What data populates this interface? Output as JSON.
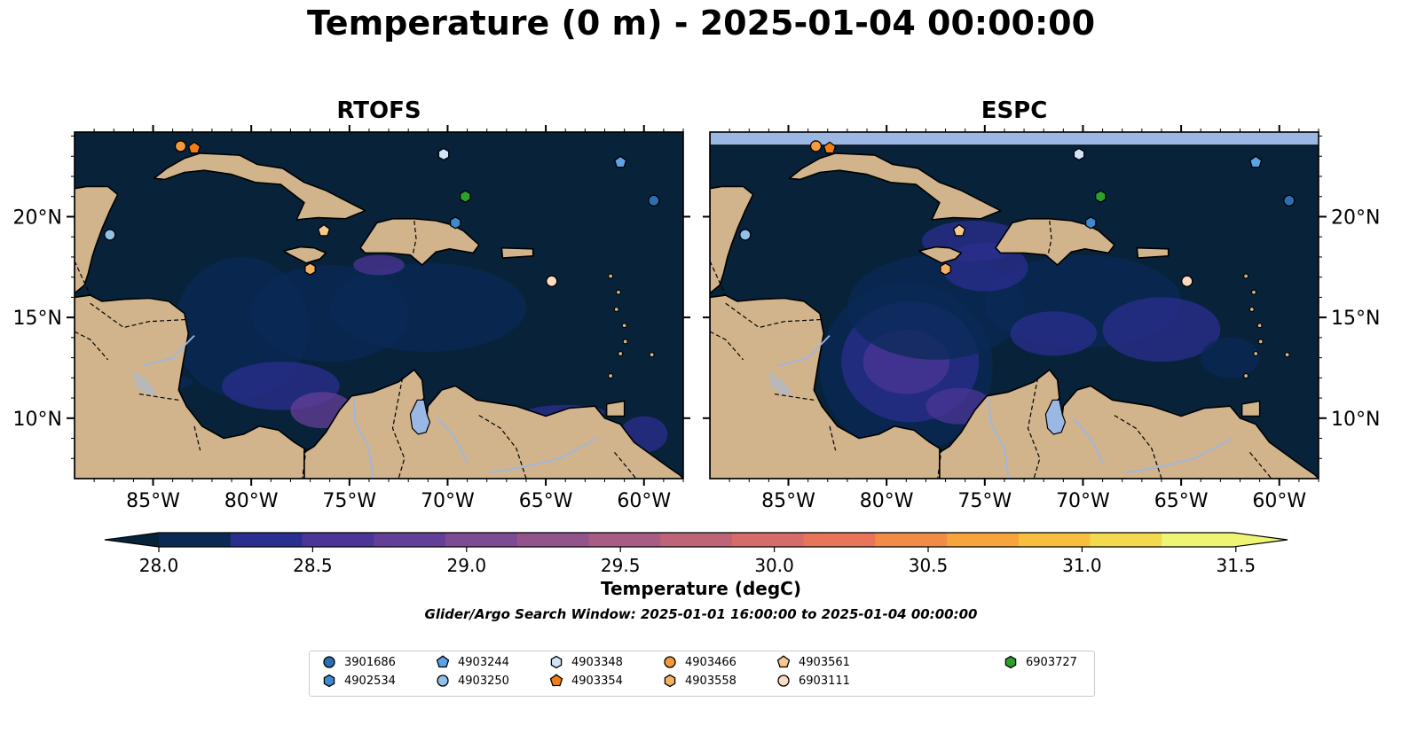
{
  "title": "Temperature (0 m) - 2025-01-04 00:00:00",
  "panels": [
    {
      "title": "RTOFS",
      "lon_ticks": [
        "85°W",
        "80°W",
        "75°W",
        "70°W",
        "65°W",
        "60°W"
      ],
      "lat_ticks": [
        "20°N",
        "15°N",
        "10°N"
      ]
    },
    {
      "title": "ESPC",
      "lon_ticks": [
        "85°W",
        "80°W",
        "75°W",
        "70°W",
        "65°W",
        "60°W"
      ],
      "lat_ticks": [
        "20°N",
        "15°N",
        "10°N"
      ]
    }
  ],
  "map_extent": {
    "lon": [
      -89,
      -58
    ],
    "lat": [
      7,
      24.2
    ]
  },
  "colorbar": {
    "label": "Temperature (degC)",
    "ticks": [
      "28.0",
      "28.5",
      "29.0",
      "29.5",
      "30.0",
      "30.5",
      "31.0",
      "31.5"
    ],
    "range": [
      28.0,
      31.5
    ],
    "step": 0.25,
    "colors": [
      "#0a2a55",
      "#2a2f8f",
      "#4b3597",
      "#643f98",
      "#7d4a93",
      "#93548c",
      "#a85c84",
      "#be6479",
      "#d66c6a",
      "#e8745a",
      "#f28a48",
      "#f6a43c",
      "#f6bf3d",
      "#f3d94e",
      "#eef574"
    ],
    "under_color": "#06233a",
    "over_color": "#eef574"
  },
  "colors": {
    "ocean": "#08223a",
    "land": "#d2b48c",
    "water_body": "#9bb7e3",
    "missing_band": "#9bb7e3"
  },
  "search_window": "Glider/Argo Search Window: 2025-01-01 16:00:00 to 2025-01-04 00:00:00",
  "platforms": [
    {
      "id": "3901686",
      "marker": "circle",
      "color": "#2b6fb3",
      "lon": -59.5,
      "lat": 20.8
    },
    {
      "id": "4902534",
      "marker": "hexagon",
      "color": "#3b8ad0",
      "lon": -69.6,
      "lat": 19.7
    },
    {
      "id": "4903244",
      "marker": "pentagon",
      "color": "#5aa3e6",
      "lon": -61.2,
      "lat": 22.7
    },
    {
      "id": "4903250",
      "marker": "circle",
      "color": "#8fc1ea",
      "lon": -87.2,
      "lat": 19.1
    },
    {
      "id": "4903348",
      "marker": "hexagon",
      "color": "#cfe4f7",
      "lon": -70.2,
      "lat": 23.1
    },
    {
      "id": "4903354",
      "marker": "pentagon",
      "color": "#f07d17",
      "lon": -82.9,
      "lat": 23.4
    },
    {
      "id": "4903466",
      "marker": "circle",
      "color": "#f59a3b",
      "lon": -83.6,
      "lat": 23.5
    },
    {
      "id": "4903558",
      "marker": "hexagon",
      "color": "#f6b063",
      "lon": -77.0,
      "lat": 17.4
    },
    {
      "id": "4903561",
      "marker": "pentagon",
      "color": "#f7c88e",
      "lon": -76.3,
      "lat": 19.3
    },
    {
      "id": "6903111",
      "marker": "circle",
      "color": "#fbdcc0",
      "lon": -64.7,
      "lat": 16.8
    },
    {
      "id": "6903727",
      "marker": "hexagon",
      "color": "#2ca02c",
      "lon": -69.1,
      "lat": 21.0
    }
  ]
}
